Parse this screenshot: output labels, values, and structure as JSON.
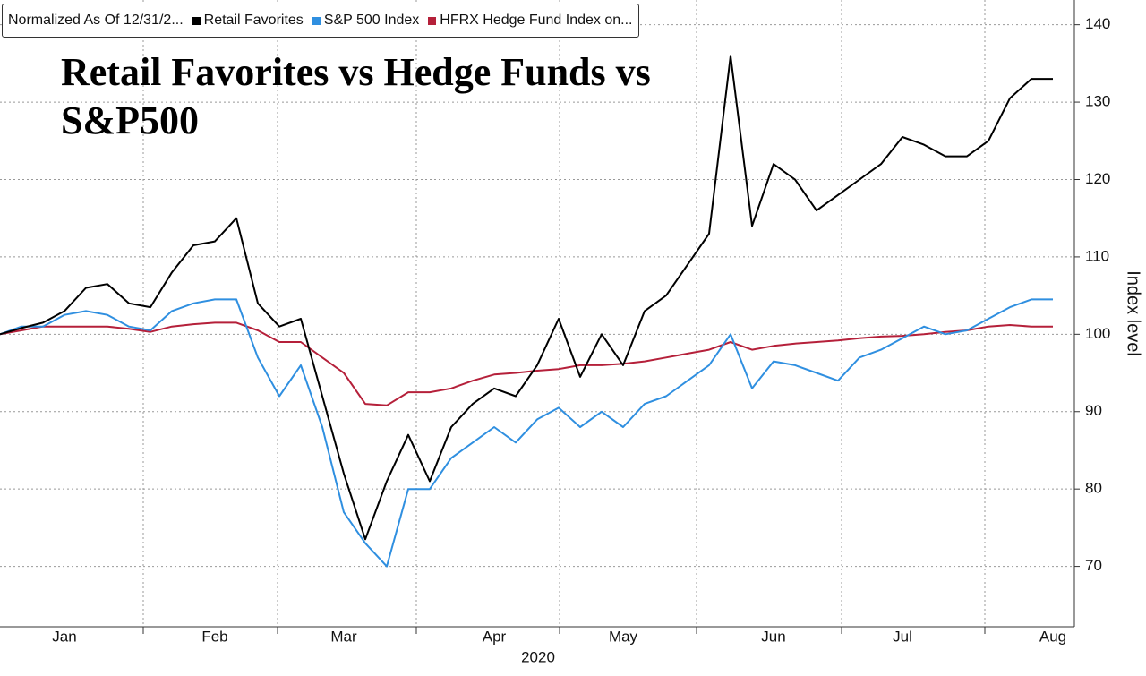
{
  "chart_data": {
    "type": "line",
    "title": "Retail Favorites vs Hedge Funds vs S&P500",
    "legend_note": "Normalized As Of 12/31/2...",
    "x_label": "2020",
    "y_label": "Index level",
    "categories": [
      null,
      null,
      null,
      "Jan",
      null,
      null,
      null,
      null,
      null,
      null,
      "Feb",
      null,
      null,
      null,
      null,
      null,
      "Mar",
      null,
      null,
      null,
      null,
      null,
      null,
      "Apr",
      null,
      null,
      null,
      null,
      null,
      "May",
      null,
      null,
      null,
      null,
      null,
      null,
      "Jun",
      null,
      null,
      null,
      null,
      null,
      "Jul",
      null,
      null,
      null,
      null,
      null,
      null,
      "Aug"
    ],
    "series": [
      {
        "name": "Retail Favorites",
        "color": "#000000",
        "values": [
          100,
          100.8,
          101.5,
          103,
          106,
          106.5,
          104,
          103.5,
          108,
          111.5,
          112,
          115,
          104,
          101,
          102,
          92,
          82,
          73.5,
          81,
          87,
          81,
          88,
          91,
          93,
          92,
          96,
          102,
          94.5,
          100,
          96,
          103,
          105,
          109,
          113,
          136,
          114,
          122,
          120,
          116,
          118,
          120,
          122,
          125.5,
          124.5,
          123,
          123,
          125,
          130.5,
          133,
          133
        ]
      },
      {
        "name": "S&P 500 Index",
        "color": "#2f8fe0",
        "values": [
          100,
          101,
          101,
          102.5,
          103,
          102.5,
          101,
          100.5,
          103,
          104,
          104.5,
          104.5,
          97,
          92,
          96,
          88,
          77,
          73,
          70,
          80,
          80,
          84,
          86,
          88,
          86,
          89,
          90.5,
          88,
          90,
          88,
          91,
          92,
          94,
          96,
          100,
          93,
          96.5,
          96,
          95,
          94,
          97,
          98,
          99.5,
          101,
          100,
          100.5,
          102,
          103.5,
          104.5,
          104.5
        ]
      },
      {
        "name": "HFRX Hedge Fund Index on...",
        "color": "#b5203a",
        "values": [
          100,
          100.5,
          101,
          101,
          101,
          101,
          100.7,
          100.3,
          101,
          101.3,
          101.5,
          101.5,
          100.5,
          99,
          99,
          97,
          95,
          91,
          90.8,
          92.5,
          92.5,
          93,
          94,
          94.8,
          95,
          95.3,
          95.5,
          96,
          96,
          96.2,
          96.5,
          97,
          97.5,
          98,
          99,
          98,
          98.5,
          98.8,
          99,
          99.2,
          99.5,
          99.7,
          99.8,
          100,
          100.3,
          100.5,
          101,
          101.2,
          101,
          101
        ]
      }
    ],
    "ylim": [
      62.2,
      143.2
    ],
    "yticks": [
      70,
      80,
      90,
      100,
      110,
      120,
      130,
      140
    ],
    "grid": true
  }
}
